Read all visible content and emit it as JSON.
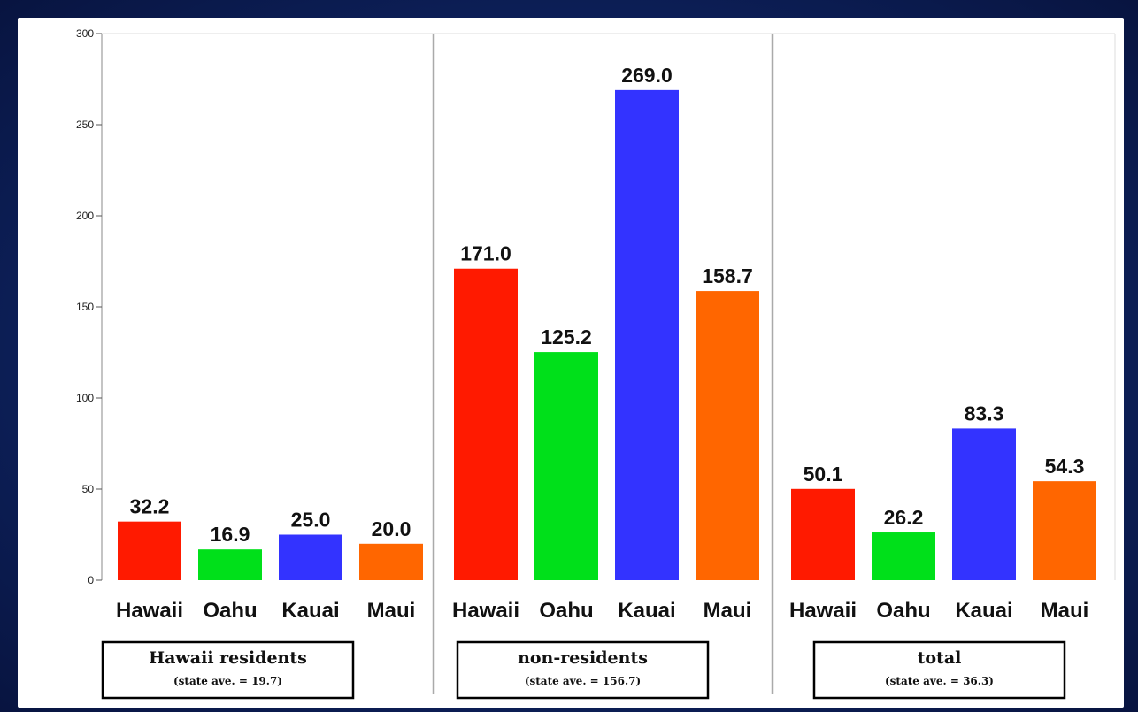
{
  "chart_data": {
    "type": "bar",
    "ylim": [
      0,
      300
    ],
    "yticks": [
      0,
      50,
      100,
      150,
      200,
      250,
      300
    ],
    "grid": false,
    "groups": [
      {
        "label": "Hawaii residents",
        "note": "(state ave. = 19.7)",
        "categories": [
          "Hawaii",
          "Oahu",
          "Kauai",
          "Maui"
        ],
        "values": [
          32.2,
          16.9,
          25.0,
          20.0
        ],
        "value_labels": [
          "32.2",
          "16.9",
          "25.0",
          "20.0"
        ]
      },
      {
        "label": "non-residents",
        "note": "(state ave. = 156.7)",
        "categories": [
          "Hawaii",
          "Oahu",
          "Kauai",
          "Maui"
        ],
        "values": [
          171.0,
          125.2,
          269.0,
          158.7
        ],
        "value_labels": [
          "171.0",
          "125.2",
          "269.0",
          "158.7"
        ]
      },
      {
        "label": "total",
        "note": "(state ave. = 36.3)",
        "categories": [
          "Hawaii",
          "Oahu",
          "Kauai",
          "Maui"
        ],
        "values": [
          50.1,
          26.2,
          83.3,
          54.3
        ],
        "value_labels": [
          "50.1",
          "26.2",
          "83.3",
          "54.3"
        ]
      }
    ],
    "colors": {
      "Hawaii": "#ff1a00",
      "Oahu": "#00e01a",
      "Kauai": "#3333ff",
      "Maui": "#ff6600"
    }
  }
}
